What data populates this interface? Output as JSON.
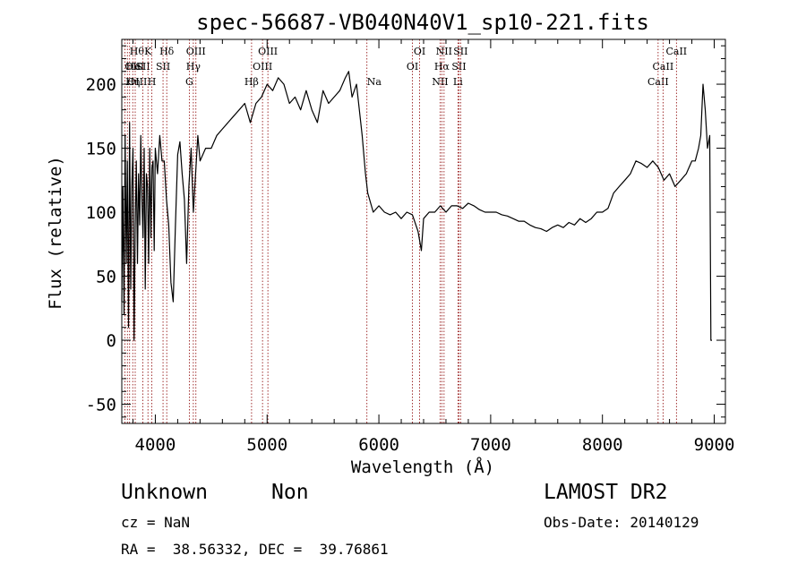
{
  "chart_data": {
    "type": "line",
    "title": "spec-56687-VB040N40V1_sp10-221.fits",
    "xlabel": "Wavelength (Å)",
    "ylabel": "Flux (relative)",
    "xlim": [
      3700,
      9100
    ],
    "ylim": [
      -65,
      235
    ],
    "xticks": [
      4000,
      5000,
      6000,
      7000,
      8000,
      9000
    ],
    "yticks": [
      -50,
      0,
      50,
      100,
      150,
      200
    ],
    "grid": false,
    "line_color": "#000000",
    "marker_color": "#8b0000",
    "series": [
      {
        "x": [
          3700,
          3710,
          3720,
          3730,
          3740,
          3750,
          3760,
          3770,
          3780,
          3790,
          3800,
          3810,
          3820,
          3830,
          3840,
          3850,
          3860,
          3870,
          3880,
          3890,
          3900,
          3910,
          3920,
          3930,
          3940,
          3950,
          3960,
          3970,
          3980,
          3990,
          4000,
          4020,
          4040,
          4060,
          4080,
          4100,
          4120,
          4140,
          4160,
          4180,
          4200,
          4220,
          4240,
          4260,
          4280,
          4300,
          4320,
          4340,
          4360,
          4380,
          4400,
          4450,
          4500,
          4550,
          4600,
          4650,
          4700,
          4750,
          4800,
          4850,
          4900,
          4950,
          5000,
          5050,
          5100,
          5150,
          5200,
          5250,
          5300,
          5350,
          5400,
          5450,
          5500,
          5550,
          5600,
          5650,
          5700,
          5730,
          5760,
          5800,
          5850,
          5880,
          5900,
          5950,
          6000,
          6050,
          6100,
          6150,
          6200,
          6250,
          6300,
          6350,
          6380,
          6400,
          6450,
          6500,
          6550,
          6600,
          6650,
          6700,
          6750,
          6800,
          6850,
          6900,
          6950,
          7000,
          7050,
          7100,
          7150,
          7200,
          7250,
          7300,
          7350,
          7400,
          7450,
          7500,
          7550,
          7600,
          7650,
          7700,
          7750,
          7800,
          7850,
          7900,
          7950,
          8000,
          8050,
          8100,
          8150,
          8200,
          8250,
          8300,
          8350,
          8400,
          8450,
          8500,
          8550,
          8600,
          8650,
          8700,
          8750,
          8800,
          8830,
          8860,
          8880,
          8900,
          8920,
          8940,
          8960,
          8970,
          8980
        ],
        "y": [
          30,
          120,
          20,
          160,
          60,
          140,
          10,
          170,
          40,
          120,
          150,
          0,
          90,
          140,
          60,
          130,
          90,
          160,
          110,
          80,
          150,
          40,
          130,
          120,
          60,
          150,
          80,
          135,
          140,
          70,
          150,
          130,
          160,
          140,
          140,
          110,
          90,
          45,
          30,
          90,
          145,
          155,
          130,
          110,
          60,
          120,
          150,
          100,
          130,
          160,
          140,
          150,
          150,
          160,
          165,
          170,
          175,
          180,
          185,
          170,
          185,
          190,
          200,
          195,
          205,
          200,
          185,
          190,
          180,
          195,
          180,
          170,
          195,
          185,
          190,
          195,
          205,
          210,
          190,
          200,
          160,
          130,
          115,
          100,
          105,
          100,
          98,
          100,
          95,
          100,
          98,
          85,
          70,
          95,
          100,
          100,
          105,
          100,
          105,
          105,
          103,
          107,
          105,
          102,
          100,
          100,
          100,
          98,
          97,
          95,
          93,
          93,
          90,
          88,
          87,
          85,
          88,
          90,
          88,
          92,
          90,
          95,
          92,
          95,
          100,
          100,
          103,
          115,
          120,
          125,
          130,
          140,
          138,
          135,
          140,
          135,
          125,
          130,
          120,
          125,
          130,
          140,
          140,
          150,
          160,
          200,
          180,
          150,
          160,
          0,
          0
        ]
      }
    ],
    "line_markers": [
      {
        "wavelength": 3727,
        "label": "OII",
        "row": 2,
        "align": "start"
      },
      {
        "wavelength": 3750,
        "label": "OIII",
        "row": 3,
        "align": "start"
      },
      {
        "wavelength": 3770,
        "label": "Hθ",
        "row": 1,
        "align": "start"
      },
      {
        "wavelength": 3798,
        "label": "Hη",
        "row": 3,
        "align": "middle"
      },
      {
        "wavelength": 3820,
        "label": "HeI",
        "row": 2,
        "align": "middle"
      },
      {
        "wavelength": 3889,
        "label": "SII",
        "row": 2,
        "align": "middle"
      },
      {
        "wavelength": 3934,
        "label": "K",
        "row": 1,
        "align": "middle"
      },
      {
        "wavelength": 3969,
        "label": "H",
        "row": 3,
        "align": "middle"
      },
      {
        "wavelength": 4069,
        "label": "SII",
        "row": 2,
        "align": "middle"
      },
      {
        "wavelength": 4102,
        "label": "Hδ",
        "row": 1,
        "align": "middle"
      },
      {
        "wavelength": 4304,
        "label": "G",
        "row": 3,
        "align": "middle"
      },
      {
        "wavelength": 4340,
        "label": "Hγ",
        "row": 2,
        "align": "middle"
      },
      {
        "wavelength": 4363,
        "label": "OIII",
        "row": 1,
        "align": "middle"
      },
      {
        "wavelength": 4861,
        "label": "Hβ",
        "row": 3,
        "align": "middle"
      },
      {
        "wavelength": 4959,
        "label": "OIII",
        "row": 2,
        "align": "middle"
      },
      {
        "wavelength": 5007,
        "label": "OIII",
        "row": 1,
        "align": "middle"
      },
      {
        "wavelength": 5893,
        "label": "Na",
        "row": 3,
        "align": "start"
      },
      {
        "wavelength": 6300,
        "label": "OI",
        "row": 2,
        "align": "middle"
      },
      {
        "wavelength": 6364,
        "label": "OI",
        "row": 1,
        "align": "middle"
      },
      {
        "wavelength": 6548,
        "label": "NII",
        "row": 3,
        "align": "middle"
      },
      {
        "wavelength": 6563,
        "label": "Hα",
        "row": 2,
        "align": "middle"
      },
      {
        "wavelength": 6583,
        "label": "NII",
        "row": 1,
        "align": "middle"
      },
      {
        "wavelength": 6707,
        "label": "Li",
        "row": 3,
        "align": "middle"
      },
      {
        "wavelength": 6716,
        "label": "SII",
        "row": 2,
        "align": "middle"
      },
      {
        "wavelength": 6731,
        "label": "SII",
        "row": 1,
        "align": "middle"
      },
      {
        "wavelength": 8498,
        "label": "CaII",
        "row": 3,
        "align": "middle"
      },
      {
        "wavelength": 8542,
        "label": "CaII",
        "row": 2,
        "align": "middle"
      },
      {
        "wavelength": 8662,
        "label": "CaII",
        "row": 1,
        "align": "middle"
      }
    ]
  },
  "info": {
    "object_class": "Unknown",
    "subclass": "Non",
    "survey": "LAMOST DR2",
    "cz": "cz = NaN",
    "obs_date": "Obs-Date: 20140129",
    "coords": "RA =  38.56332, DEC =  39.76861"
  }
}
